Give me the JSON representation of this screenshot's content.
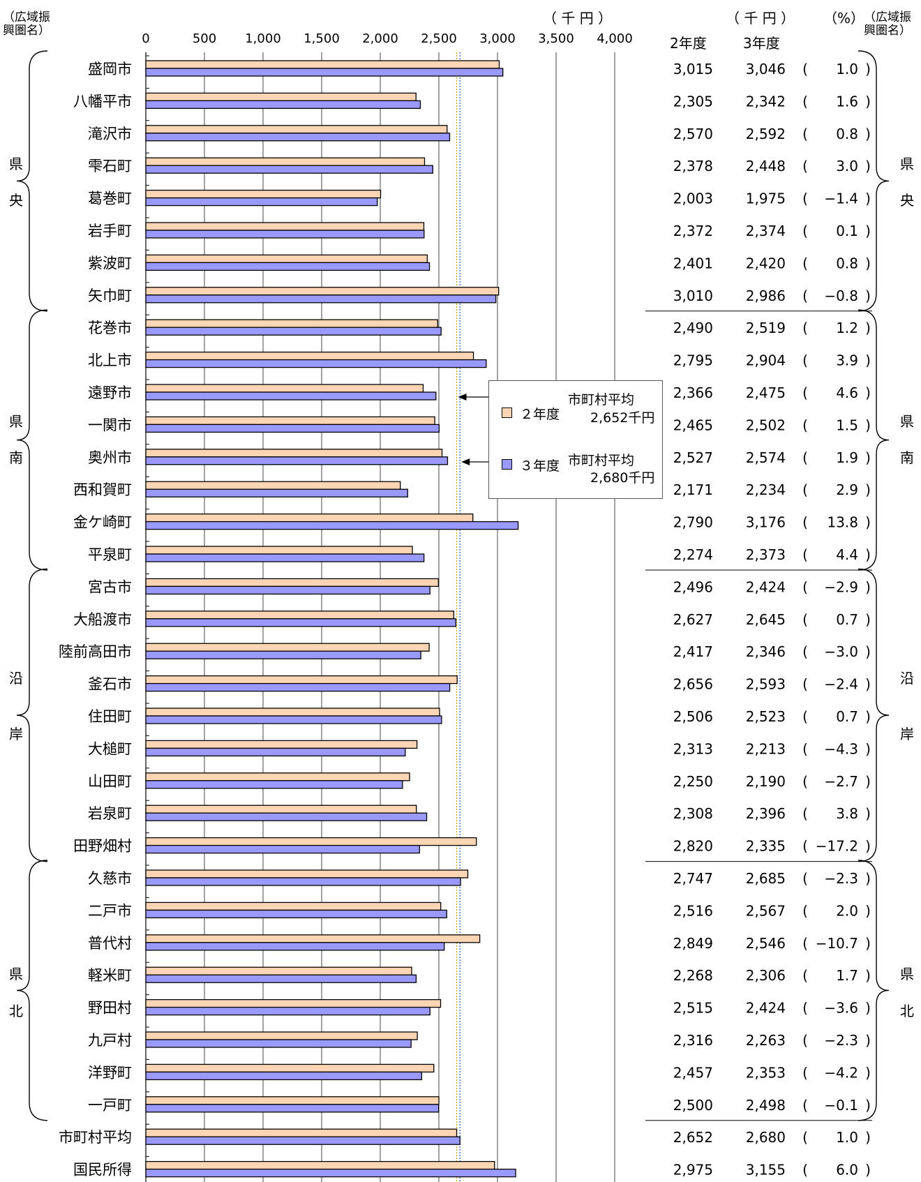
{
  "header": {
    "left_region_label": [
      "（広域振",
      "興圏名）"
    ],
    "axis_unit": "（ 千 円 ）",
    "table_unit": "（ 千 円 ）",
    "pct_unit": "（%）",
    "right_region_label": [
      "（広域振",
      "興圏名）"
    ],
    "col_prev": "2年度",
    "col_curr": "3年度"
  },
  "regions": [
    {
      "chars": [
        "県",
        "央"
      ]
    },
    {
      "chars": [
        "県",
        "南"
      ]
    },
    {
      "chars": [
        "沿",
        "岸"
      ]
    },
    {
      "chars": [
        "県",
        "北"
      ]
    }
  ],
  "legend": {
    "prev_label": "２年度",
    "prev_avg_title": "市町村平均",
    "prev_avg_value": "2,652千円",
    "curr_label": "３年度",
    "curr_avg_title": "市町村平均",
    "curr_avg_value": "2,680千円"
  },
  "colors": {
    "prev_bar": "#FCD5B4",
    "curr_bar": "#9999FF",
    "avg_prev_line": "#C8A000",
    "avg_curr_line": "#2060C0"
  },
  "chart_data": {
    "type": "bar",
    "orientation": "horizontal",
    "xlim": [
      0,
      4000
    ],
    "xticks": [
      "0",
      "500",
      "1,000",
      "1,500",
      "2,000",
      "2,500",
      "3,000",
      "3,500",
      "4,000"
    ],
    "avg_prev": 2652,
    "avg_curr": 2680,
    "categories": [
      "盛岡市",
      "八幡平市",
      "滝沢市",
      "雫石町",
      "葛巻町",
      "岩手町",
      "紫波町",
      "矢巾町",
      "花巻市",
      "北上市",
      "遠野市",
      "一関市",
      "奥州市",
      "西和賀町",
      "金ケ崎町",
      "平泉町",
      "宮古市",
      "大船渡市",
      "陸前高田市",
      "釜石市",
      "住田町",
      "大槌町",
      "山田町",
      "岩泉町",
      "田野畑村",
      "久慈市",
      "二戸市",
      "普代村",
      "軽米町",
      "野田村",
      "九戸村",
      "洋野町",
      "一戸町",
      "市町村平均",
      "国民所得"
    ],
    "series": [
      {
        "name": "２年度",
        "values": [
          3015,
          2305,
          2570,
          2378,
          2003,
          2372,
          2401,
          3010,
          2490,
          2795,
          2366,
          2465,
          2527,
          2171,
          2790,
          2274,
          2496,
          2627,
          2417,
          2656,
          2506,
          2313,
          2250,
          2308,
          2820,
          2747,
          2516,
          2849,
          2268,
          2515,
          2316,
          2457,
          2500,
          2652,
          2975
        ]
      },
      {
        "name": "３年度",
        "values": [
          3046,
          2342,
          2592,
          2448,
          1975,
          2374,
          2420,
          2986,
          2519,
          2904,
          2475,
          2502,
          2574,
          2234,
          3176,
          2373,
          2424,
          2645,
          2346,
          2593,
          2523,
          2213,
          2190,
          2396,
          2335,
          2685,
          2567,
          2546,
          2306,
          2424,
          2263,
          2353,
          2498,
          2680,
          3155
        ]
      }
    ],
    "table": {
      "prev_text": [
        "3,015",
        "2,305",
        "2,570",
        "2,378",
        "2,003",
        "2,372",
        "2,401",
        "3,010",
        "2,490",
        "2,795",
        "2,366",
        "2,465",
        "2,527",
        "2,171",
        "2,790",
        "2,274",
        "2,496",
        "2,627",
        "2,417",
        "2,656",
        "2,506",
        "2,313",
        "2,250",
        "2,308",
        "2,820",
        "2,747",
        "2,516",
        "2,849",
        "2,268",
        "2,515",
        "2,316",
        "2,457",
        "2,500",
        "2,652",
        "2,975"
      ],
      "curr_text": [
        "3,046",
        "2,342",
        "2,592",
        "2,448",
        "1,975",
        "2,374",
        "2,420",
        "2,986",
        "2,519",
        "2,904",
        "2,475",
        "2,502",
        "2,574",
        "2,234",
        "3,176",
        "2,373",
        "2,424",
        "2,645",
        "2,346",
        "2,593",
        "2,523",
        "2,213",
        "2,190",
        "2,396",
        "2,335",
        "2,685",
        "2,567",
        "2,546",
        "2,306",
        "2,424",
        "2,263",
        "2,353",
        "2,498",
        "2,680",
        "3,155"
      ],
      "pct_text": [
        "1.0",
        "1.6",
        "0.8",
        "3.0",
        "−1.4",
        "0.1",
        "0.8",
        "−0.8",
        "1.2",
        "3.9",
        "4.6",
        "1.5",
        "1.9",
        "2.9",
        "13.8",
        "4.4",
        "−2.9",
        "0.7",
        "−3.0",
        "−2.4",
        "0.7",
        "−4.3",
        "−2.7",
        "3.8",
        "−17.2",
        "−2.3",
        "2.0",
        "−10.7",
        "1.7",
        "−3.6",
        "−2.3",
        "−4.2",
        "−0.1",
        "1.0",
        "6.0"
      ]
    }
  }
}
